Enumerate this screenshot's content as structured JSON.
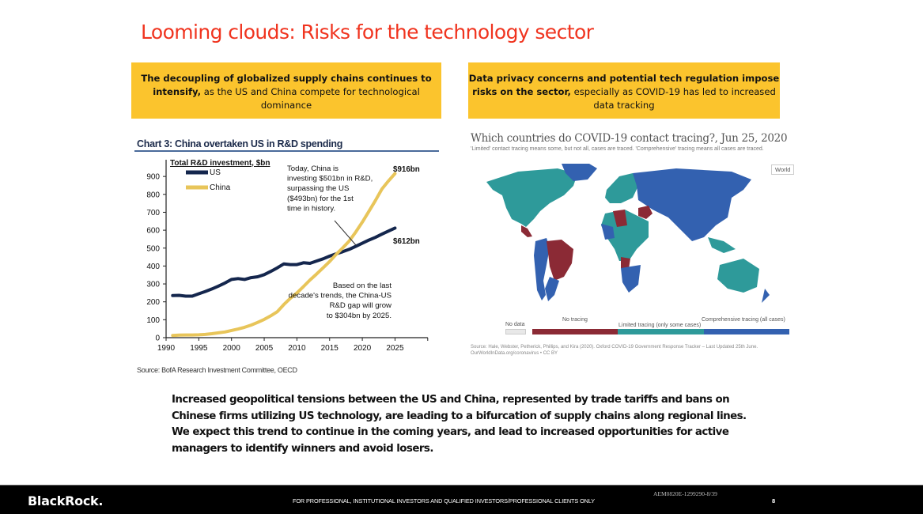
{
  "title": "Looming clouds: Risks for the technology sector",
  "callouts": {
    "left": {
      "bold": "The decoupling of globalized supply chains continues to intensify,",
      "rest": " as the US and China compete for technological dominance"
    },
    "right": {
      "bold": "Data privacy concerns and potential tech regulation impose risks on the sector,",
      "rest": " especially as COVID-19 has led to increased data tracking"
    }
  },
  "colors": {
    "title": "#f0341f",
    "callout_bg": "#fbc42d",
    "us_line": "#14264d",
    "china_line": "#e8c55a",
    "no_tracing": "#8b2a35",
    "limited_tracing": "#2e9a9a",
    "comprehensive_tracing": "#3361b0",
    "footer_bg": "#000000"
  },
  "chart_data": {
    "type": "line",
    "title": "Chart 3: China overtaken US in R&D spending",
    "ylabel": "Total R&D investment, $bn",
    "xlabel": "",
    "xlim": [
      1990,
      2030
    ],
    "ylim": [
      0,
      950
    ],
    "x_ticks": [
      "1990",
      "1995",
      "2000",
      "2005",
      "2010",
      "2015",
      "2020",
      "2025"
    ],
    "y_ticks": [
      "0",
      "100",
      "200",
      "300",
      "400",
      "500",
      "600",
      "700",
      "800",
      "900"
    ],
    "legend": [
      "US",
      "China"
    ],
    "legend_position": "top-left",
    "x": [
      1991,
      1992,
      1993,
      1994,
      1995,
      1996,
      1997,
      1998,
      1999,
      2000,
      2001,
      2002,
      2003,
      2004,
      2005,
      2006,
      2007,
      2008,
      2009,
      2010,
      2011,
      2012,
      2013,
      2014,
      2015,
      2016,
      2017,
      2018,
      2019,
      2020,
      2021,
      2022,
      2023,
      2024,
      2025
    ],
    "series": [
      {
        "name": "US",
        "values": [
          235,
          236,
          232,
          232,
          245,
          258,
          272,
          288,
          305,
          325,
          330,
          325,
          335,
          340,
          352,
          370,
          390,
          412,
          408,
          408,
          418,
          415,
          428,
          440,
          455,
          468,
          480,
          493,
          510,
          527,
          545,
          560,
          578,
          595,
          612
        ]
      },
      {
        "name": "China",
        "values": [
          12,
          14,
          15,
          15,
          16,
          18,
          22,
          27,
          32,
          40,
          48,
          58,
          70,
          85,
          102,
          122,
          145,
          185,
          220,
          250,
          285,
          322,
          355,
          390,
          425,
          465,
          501,
          540,
          590,
          645,
          705,
          765,
          830,
          875,
          916
        ]
      }
    ],
    "annotations": {
      "crossover": "Today, China is investing $501bn in R&D, surpassing the US ($493bn) for the 1st time in history.",
      "gap": "Based on the last decade's trends, the China-US R&D gap will grow to $304bn by 2025.",
      "china_end": "$916bn",
      "us_end": "$612bn"
    },
    "source": "Source: BofA Research Investment Committee, OECD"
  },
  "map": {
    "title": "Which countries do COVID-19 contact tracing?, Jun 25, 2020",
    "subtitle": "'Limited' contact tracing means some, but not all, cases are traced. 'Comprehensive' tracing means all cases are traced.",
    "region_button": "World",
    "legend": {
      "no_data": "No data",
      "no_tracing": "No tracing",
      "limited": "Limited tracing (only some cases)",
      "comprehensive": "Comprehensive tracing (all cases)"
    },
    "source": "Source: Hale, Webster, Petherick, Phillips, and Kira (2020). Oxford COVID-19 Government Response Tracker – Last Updated 25th June. OurWorldInData.org/coronavirus • CC BY"
  },
  "body_text": "Increased geopolitical tensions between the US and China, represented by trade tariffs and bans on Chinese firms utilizing US technology, are leading to a bifurcation of supply chains along regional lines. We expect this trend to continue in the coming years, and lead to increased opportunities for active managers to identify winners and avoid losers.",
  "footer": {
    "logo": "BlackRock.",
    "disclaimer": "FOR PROFESSIONAL, INSTITUTIONAL INVESTORS AND QUALIFIED INVESTORS/PROFESSIONAL CLIENTS ONLY",
    "code": "AEM0820E-1299290-8/39",
    "page": "8"
  }
}
